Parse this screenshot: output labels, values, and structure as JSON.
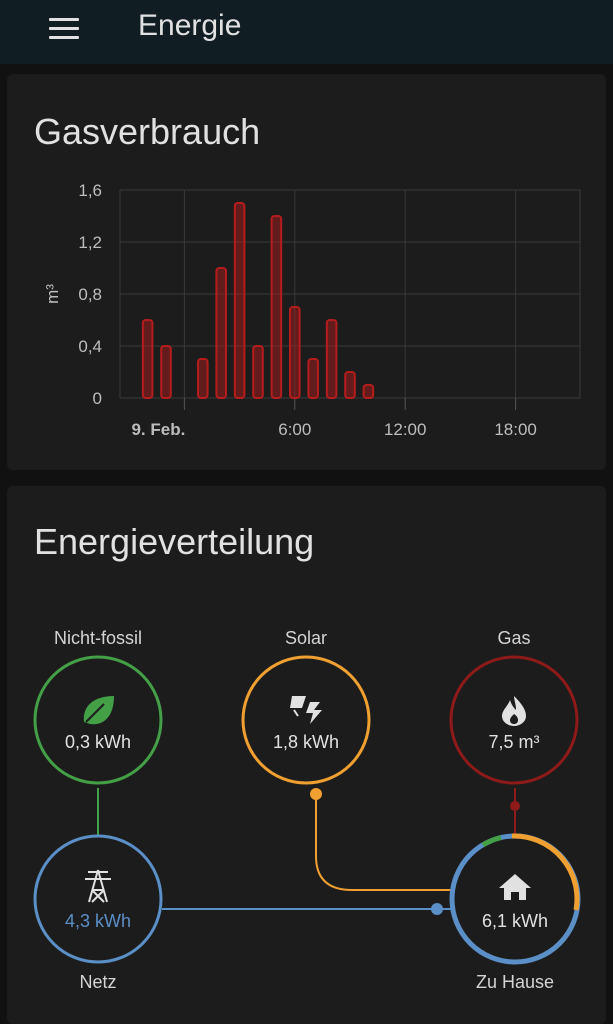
{
  "header": {
    "title": "Energie",
    "menu_icon": "hamburger-menu-icon"
  },
  "gas_card": {
    "title": "Gasverbrauch"
  },
  "chart_data": {
    "type": "bar",
    "title": "Gasverbrauch",
    "ylabel": "m³",
    "xlabel": "",
    "ylim": [
      0,
      1.6
    ],
    "y_ticks": [
      "1,6",
      "1,2",
      "0,8",
      "0,4",
      "0"
    ],
    "y_tick_values": [
      1.6,
      1.2,
      0.8,
      0.4,
      0
    ],
    "x_ticks": [
      "9. Feb.",
      "6:00",
      "12:00",
      "18:00"
    ],
    "x_tick_hours": [
      0,
      6,
      12,
      18
    ],
    "x_range_hours": [
      -3.5,
      21.5
    ],
    "bar_color": "#b71c1c",
    "x": [
      -2,
      -1,
      0,
      1,
      2,
      3,
      4,
      5,
      6,
      7,
      8,
      9,
      10,
      11,
      12,
      13,
      14,
      15,
      16,
      17,
      18,
      19,
      20,
      21
    ],
    "values": [
      0.6,
      0.4,
      0,
      0.3,
      1.0,
      1.5,
      0.4,
      1.4,
      0.7,
      0.3,
      0.6,
      0.2,
      0.1,
      0,
      0,
      0,
      0,
      0,
      0,
      0,
      0,
      0,
      0,
      0
    ],
    "grid": true
  },
  "distribution_card": {
    "title": "Energieverteilung",
    "nodes": {
      "fossil_free": {
        "label": "Nicht-fossil",
        "value": "0,3 kWh",
        "color": "#43a047",
        "icon": "leaf-icon"
      },
      "solar": {
        "label": "Solar",
        "value": "1,8 kWh",
        "color": "#f0a030",
        "icon": "solar-power-icon"
      },
      "gas": {
        "label": "Gas",
        "value": "7,5 m³",
        "color": "#8e1a1a",
        "icon": "fire-icon"
      },
      "grid": {
        "label": "Netz",
        "value": "4,3 kWh",
        "color": "#5b8fc7",
        "icon": "transmission-tower-icon"
      },
      "home": {
        "label": "Zu Hause",
        "value": "6,1 kWh",
        "color": "#5b8fc7",
        "icon": "home-icon"
      }
    }
  }
}
